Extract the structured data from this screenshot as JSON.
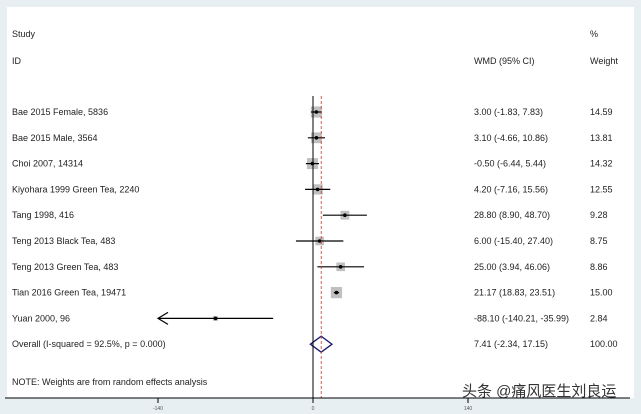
{
  "chart_data": {
    "type": "forest",
    "headers": {
      "study": "Study",
      "id": "ID",
      "effect": "WMD (95% CI)",
      "weight_top": "%",
      "weight": "Weight"
    },
    "studies": [
      {
        "label": "Bae 2015 Female, 5836",
        "est": 3.0,
        "lo": -1.83,
        "hi": 7.83,
        "ci_text": "3.00 (-1.83, 7.83)",
        "weight": "14.59"
      },
      {
        "label": "Bae 2015 Male, 3564",
        "est": 3.1,
        "lo": -4.66,
        "hi": 10.86,
        "ci_text": "3.10 (-4.66, 10.86)",
        "weight": "13.81"
      },
      {
        "label": "Choi 2007, 14314",
        "est": -0.5,
        "lo": -6.44,
        "hi": 5.44,
        "ci_text": "-0.50 (-6.44, 5.44)",
        "weight": "14.32"
      },
      {
        "label": "Kiyohara 1999 Green Tea, 2240",
        "est": 4.2,
        "lo": -7.16,
        "hi": 15.56,
        "ci_text": "4.20 (-7.16, 15.56)",
        "weight": "12.55"
      },
      {
        "label": "Tang 1998, 416",
        "est": 28.8,
        "lo": 8.9,
        "hi": 48.7,
        "ci_text": "28.80 (8.90, 48.70)",
        "weight": "9.28"
      },
      {
        "label": "Teng 2013 Black Tea, 483",
        "est": 6.0,
        "lo": -15.4,
        "hi": 27.4,
        "ci_text": "6.00 (-15.40, 27.40)",
        "weight": "8.75"
      },
      {
        "label": "Teng 2013 Green Tea, 483",
        "est": 25.0,
        "lo": 3.94,
        "hi": 46.06,
        "ci_text": "25.00 (3.94, 46.06)",
        "weight": "8.86"
      },
      {
        "label": "Tian 2016 Green Tea, 19471",
        "est": 21.17,
        "lo": 18.83,
        "hi": 23.51,
        "ci_text": "21.17 (18.83, 23.51)",
        "weight": "15.00"
      },
      {
        "label": "Yuan 2000, 96",
        "est": -88.1,
        "lo": -140.21,
        "hi": -35.99,
        "ci_text": "-88.10 (-140.21, -35.99)",
        "weight": "2.84"
      }
    ],
    "overall": {
      "label": "Overall  (I-squared = 92.5%, p = 0.000)",
      "est": 7.41,
      "lo": -2.34,
      "hi": 17.15,
      "ci_text": "7.41 (-2.34, 17.15)",
      "weight": "100.00"
    },
    "note": "NOTE: Weights are from random effects analysis",
    "xticks": [
      -140,
      0,
      140
    ],
    "xtick_labels": [
      "-140",
      "0",
      "140"
    ],
    "xlim": [
      -140,
      140
    ],
    "colors": {
      "square": "#c0c0c0",
      "diamond": "#1a1a6e",
      "ref_line": "#c0392b"
    }
  },
  "watermark": "头条 @痛风医生刘良运"
}
